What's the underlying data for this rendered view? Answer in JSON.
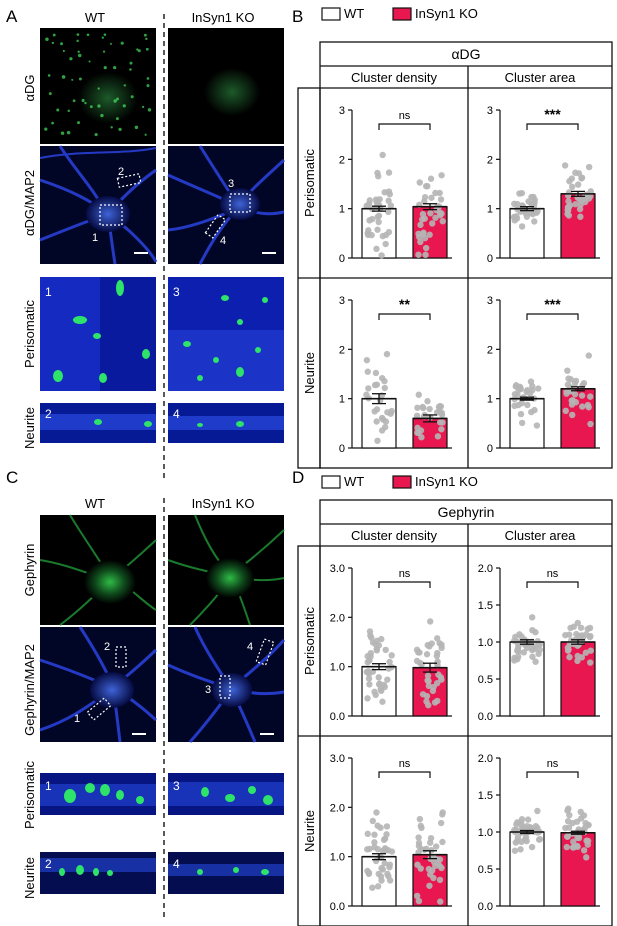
{
  "panels": [
    {
      "letter": "A",
      "col_headers": [
        "WT",
        "InSyn1 KO"
      ],
      "row_labels": [
        "αDG",
        "αDG/MAP2",
        "Perisomatic",
        "Neurite"
      ],
      "roi_labels": [
        "1",
        "2",
        "3",
        "4"
      ],
      "channel_color": "#39d353"
    },
    {
      "letter": "C",
      "col_headers": [
        "WT",
        "InSyn1 KO"
      ],
      "row_labels": [
        "Gephyrin",
        "Gephyrin/MAP2",
        "Perisomatic",
        "Neurite"
      ],
      "roi_labels": [
        "1",
        "2",
        "3",
        "4"
      ],
      "channel_color": "#39d353"
    }
  ],
  "legend": {
    "wt": "WT",
    "ko": "InSyn1 KO"
  },
  "colors": {
    "wt": "#ffffff",
    "ko": "#e8174f",
    "dots": "#b5b5b5",
    "map2": "#2233d6",
    "puncta": "#27e05a"
  },
  "charts": [
    {
      "letter": "B",
      "title": "αDG",
      "col_labels": [
        "Cluster density",
        "Cluster area"
      ],
      "row_labels": [
        "Perisomatic",
        "Neurite"
      ],
      "chart_data": [
        {
          "type": "bar",
          "id": "B-peri-density",
          "categories": [
            "WT",
            "InSyn1 KO"
          ],
          "values": [
            1.0,
            1.04
          ],
          "sem": [
            0.05,
            0.06
          ],
          "ylim": [
            0,
            3
          ],
          "yticks": [
            "0",
            "1",
            "2",
            "3"
          ],
          "significance": "ns",
          "n_points": [
            38,
            36
          ]
        },
        {
          "type": "bar",
          "id": "B-peri-area",
          "categories": [
            "WT",
            "InSyn1 KO"
          ],
          "values": [
            1.0,
            1.3
          ],
          "sem": [
            0.04,
            0.05
          ],
          "ylim": [
            0,
            3
          ],
          "yticks": [
            "0",
            "1",
            "2",
            "3"
          ],
          "significance": "***",
          "n_points": [
            30,
            34
          ]
        },
        {
          "type": "bar",
          "id": "B-neurite-density",
          "categories": [
            "WT",
            "InSyn1 KO"
          ],
          "values": [
            1.0,
            0.6
          ],
          "sem": [
            0.1,
            0.07
          ],
          "ylim": [
            0,
            3
          ],
          "yticks": [
            "0",
            "1",
            "2",
            "3"
          ],
          "significance": "**",
          "n_points": [
            26,
            26
          ]
        },
        {
          "type": "bar",
          "id": "B-neurite-area",
          "categories": [
            "WT",
            "InSyn1 KO"
          ],
          "values": [
            1.0,
            1.2
          ],
          "sem": [
            0.03,
            0.04
          ],
          "ylim": [
            0,
            3
          ],
          "yticks": [
            "0",
            "1",
            "2",
            "3"
          ],
          "significance": "***",
          "n_points": [
            28,
            28
          ]
        }
      ]
    },
    {
      "letter": "D",
      "title": "Gephyrin",
      "col_labels": [
        "Cluster density",
        "Cluster area"
      ],
      "row_labels": [
        "Perisomatic",
        "Neurite"
      ],
      "chart_data": [
        {
          "type": "bar",
          "id": "D-peri-density",
          "categories": [
            "WT",
            "InSyn1 KO"
          ],
          "values": [
            1.0,
            0.98
          ],
          "sem": [
            0.06,
            0.09
          ],
          "ylim": [
            0,
            3
          ],
          "yticks": [
            "0.0",
            "1.0",
            "2.0",
            "3.0"
          ],
          "significance": "ns",
          "n_points": [
            40,
            36
          ]
        },
        {
          "type": "bar",
          "id": "D-peri-area",
          "categories": [
            "WT",
            "InSyn1 KO"
          ],
          "values": [
            1.0,
            1.0
          ],
          "sem": [
            0.03,
            0.03
          ],
          "ylim": [
            0,
            2
          ],
          "yticks": [
            "0.0",
            "0.5",
            "1.0",
            "1.5",
            "2.0"
          ],
          "significance": "ns",
          "n_points": [
            40,
            36
          ]
        },
        {
          "type": "bar",
          "id": "D-neurite-density",
          "categories": [
            "WT",
            "InSyn1 KO"
          ],
          "values": [
            1.0,
            1.04
          ],
          "sem": [
            0.06,
            0.08
          ],
          "ylim": [
            0,
            3
          ],
          "yticks": [
            "0.0",
            "1.0",
            "2.0",
            "3.0"
          ],
          "significance": "ns",
          "n_points": [
            40,
            40
          ]
        },
        {
          "type": "bar",
          "id": "D-neurite-area",
          "categories": [
            "WT",
            "InSyn1 KO"
          ],
          "values": [
            1.0,
            0.99
          ],
          "sem": [
            0.02,
            0.02
          ],
          "ylim": [
            0,
            2
          ],
          "yticks": [
            "0.0",
            "0.5",
            "1.0",
            "1.5",
            "2.0"
          ],
          "significance": "ns",
          "n_points": [
            40,
            40
          ]
        }
      ]
    }
  ]
}
